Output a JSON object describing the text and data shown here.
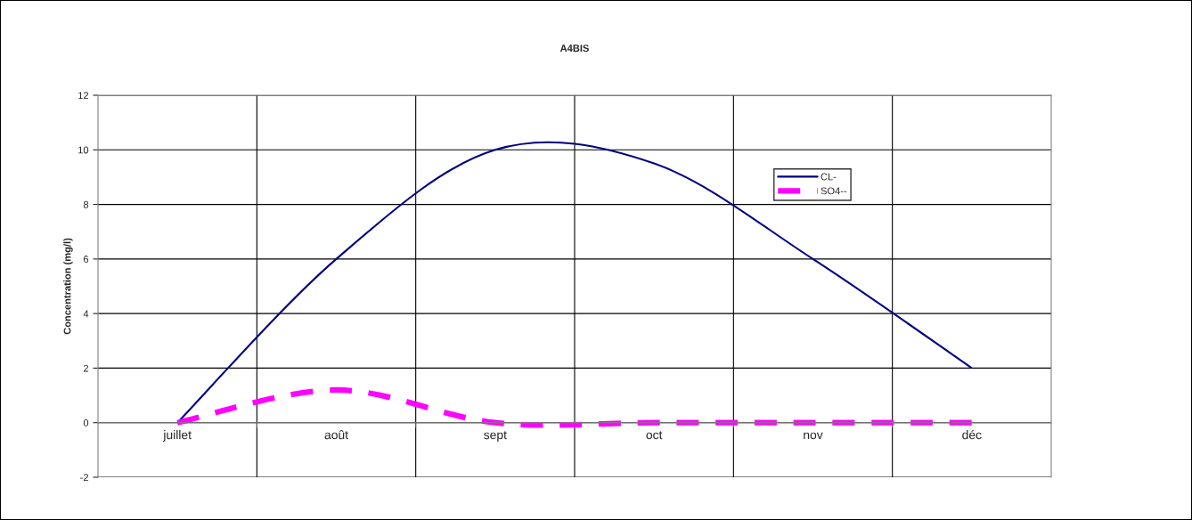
{
  "chart_data": {
    "type": "line",
    "title": "A4BIS",
    "ylabel": "Concentration (mg/l)",
    "categories": [
      "juillet",
      "août",
      "sept",
      "oct",
      "nov",
      "déc"
    ],
    "series": [
      {
        "name": "CL-",
        "color": "#000080",
        "values": [
          0,
          6,
          10,
          9.5,
          6,
          2
        ],
        "line_style": "solid"
      },
      {
        "name": "SO4--",
        "color": "#ff00ff",
        "values": [
          0,
          1.2,
          0,
          0,
          0,
          0
        ],
        "line_style": "dashed"
      }
    ],
    "ylim": [
      -2,
      12
    ],
    "yticks": [
      -2,
      0,
      2,
      4,
      6,
      8,
      10,
      12
    ],
    "grid": true,
    "legend": "top right",
    "marker": "none"
  }
}
